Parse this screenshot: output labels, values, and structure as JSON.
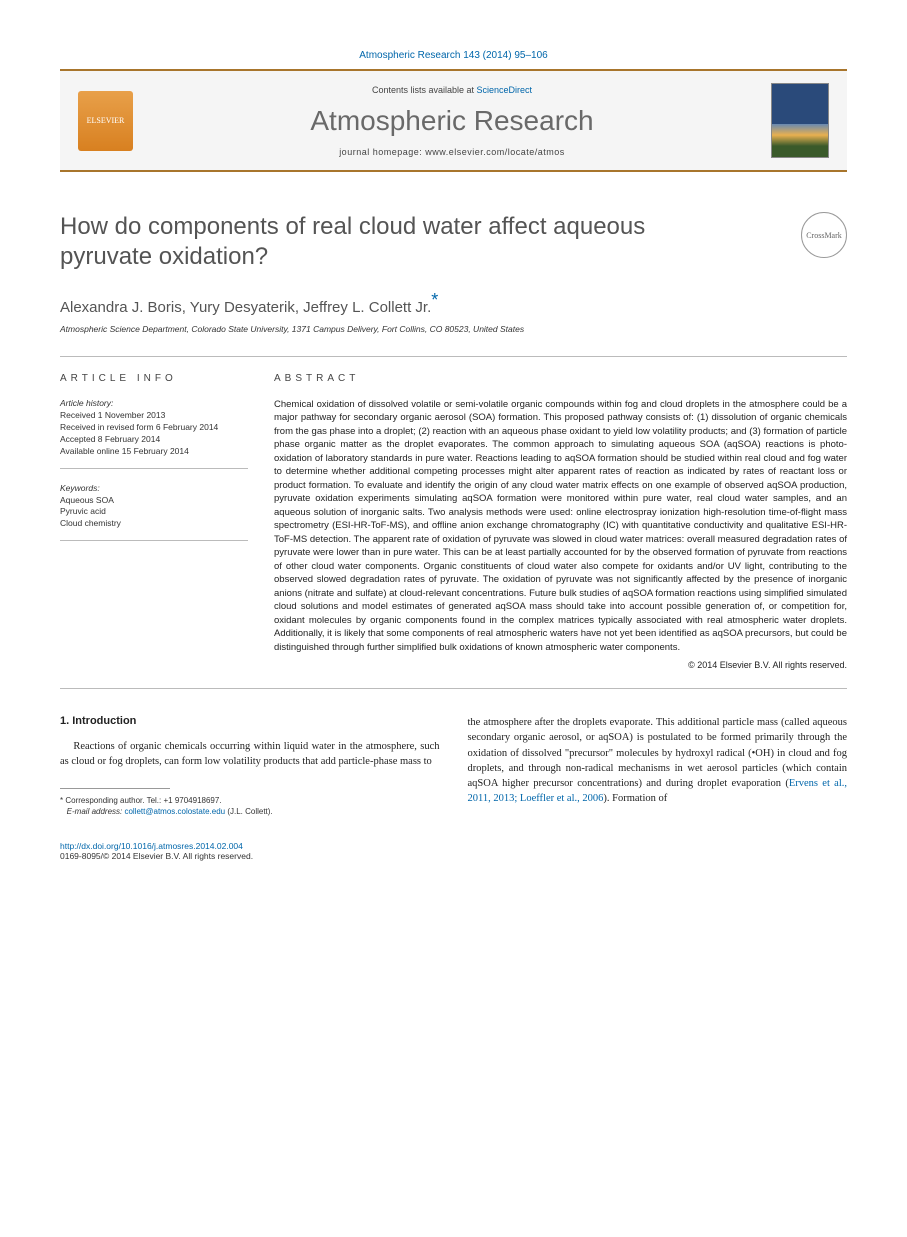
{
  "header": {
    "citation": "Atmospheric Research 143 (2014) 95–106",
    "contents_prefix": "Contents lists available at ",
    "contents_link": "ScienceDirect",
    "journal": "Atmospheric Research",
    "homepage_prefix": "journal homepage: ",
    "homepage": "www.elsevier.com/locate/atmos",
    "publisher_logo_alt": "ELSEVIER"
  },
  "article": {
    "title": "How do components of real cloud water affect aqueous pyruvate oxidation?",
    "crossmark": "CrossMark",
    "authors": "Alexandra J. Boris, Yury Desyaterik, Jeffrey L. Collett Jr.",
    "corr_symbol": "*",
    "affiliation": "Atmospheric Science Department, Colorado State University, 1371 Campus Delivery, Fort Collins, CO 80523, United States"
  },
  "info": {
    "label": "ARTICLE INFO",
    "history_label": "Article history:",
    "history": [
      "Received 1 November 2013",
      "Received in revised form 6 February 2014",
      "Accepted 8 February 2014",
      "Available online 15 February 2014"
    ],
    "keywords_label": "Keywords:",
    "keywords": [
      "Aqueous SOA",
      "Pyruvic acid",
      "Cloud chemistry"
    ]
  },
  "abstract": {
    "label": "ABSTRACT",
    "text": "Chemical oxidation of dissolved volatile or semi-volatile organic compounds within fog and cloud droplets in the atmosphere could be a major pathway for secondary organic aerosol (SOA) formation. This proposed pathway consists of: (1) dissolution of organic chemicals from the gas phase into a droplet; (2) reaction with an aqueous phase oxidant to yield low volatility products; and (3) formation of particle phase organic matter as the droplet evaporates. The common approach to simulating aqueous SOA (aqSOA) reactions is photo-oxidation of laboratory standards in pure water. Reactions leading to aqSOA formation should be studied within real cloud and fog water to determine whether additional competing processes might alter apparent rates of reaction as indicated by rates of reactant loss or product formation. To evaluate and identify the origin of any cloud water matrix effects on one example of observed aqSOA production, pyruvate oxidation experiments simulating aqSOA formation were monitored within pure water, real cloud water samples, and an aqueous solution of inorganic salts. Two analysis methods were used: online electrospray ionization high-resolution time-of-flight mass spectrometry (ESI-HR-ToF-MS), and offline anion exchange chromatography (IC) with quantitative conductivity and qualitative ESI-HR-ToF-MS detection. The apparent rate of oxidation of pyruvate was slowed in cloud water matrices: overall measured degradation rates of pyruvate were lower than in pure water. This can be at least partially accounted for by the observed formation of pyruvate from reactions of other cloud water components. Organic constituents of cloud water also compete for oxidants and/or UV light, contributing to the observed slowed degradation rates of pyruvate. The oxidation of pyruvate was not significantly affected by the presence of inorganic anions (nitrate and sulfate) at cloud-relevant concentrations. Future bulk studies of aqSOA formation reactions using simplified simulated cloud solutions and model estimates of generated aqSOA mass should take into account possible generation of, or competition for, oxidant molecules by organic components found in the complex matrices typically associated with real atmospheric water droplets. Additionally, it is likely that some components of real atmospheric waters have not yet been identified as aqSOA precursors, but could be distinguished through further simplified bulk oxidations of known atmospheric water components.",
    "copyright": "© 2014 Elsevier B.V. All rights reserved."
  },
  "body": {
    "section_heading": "1. Introduction",
    "col1": "Reactions of organic chemicals occurring within liquid water in the atmosphere, such as cloud or fog droplets, can form low volatility products that add particle-phase mass to",
    "col2_a": "the atmosphere after the droplets evaporate. This additional particle mass (called aqueous secondary organic aerosol, or aqSOA) is postulated to be formed primarily through the oxidation of dissolved \"precursor\" molecules by hydroxyl radical (•OH) in cloud and fog droplets, and through non-radical mechanisms in wet aerosol particles (which contain aqSOA higher precursor concentrations) and during droplet evaporation (",
    "col2_ref": "Ervens et al., 2011, 2013; Loeffler et al., 2006",
    "col2_b": "). Formation of"
  },
  "footnotes": {
    "corr_label": "* Corresponding author. Tel.: +1 9704918697.",
    "email_label": "E-mail address: ",
    "email": "collett@atmos.colostate.edu",
    "email_suffix": " (J.L. Collett)."
  },
  "footer": {
    "doi": "http://dx.doi.org/10.1016/j.atmosres.2014.02.004",
    "issn": "0169-8095/© 2014 Elsevier B.V. All rights reserved."
  },
  "colors": {
    "accent_orange": "#a8752c",
    "link_blue": "#0066aa",
    "heading_gray": "#545454"
  }
}
